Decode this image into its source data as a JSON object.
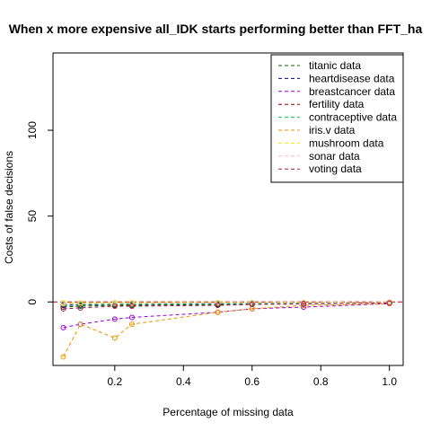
{
  "chart_data": {
    "type": "line",
    "title": "When x more expensive all_IDK starts performing better than FFT_ha",
    "xlabel": "Percentage of missing data",
    "ylabel": "Costs of false decisions",
    "xlim": [
      0.02,
      1.04
    ],
    "ylim": [
      -37,
      145
    ],
    "xticks": [
      0.2,
      0.4,
      0.6,
      0.8,
      1.0
    ],
    "xtick_labels": [
      "0.2",
      "0.4",
      "0.6",
      "0.8",
      "1.0"
    ],
    "yticks": [
      0,
      50,
      100
    ],
    "ytick_labels": [
      "0",
      "50",
      "100"
    ],
    "grid": false,
    "legend_position": "top-right",
    "reference_line": {
      "y": 0,
      "color": "#cc0000",
      "style": "dashed"
    },
    "x": [
      0.05,
      0.1,
      0.2,
      0.25,
      0.5,
      0.6,
      0.75,
      1.0
    ],
    "series": [
      {
        "name": "titanic data",
        "color": "#006400",
        "values": [
          -3,
          -2.5,
          -2,
          -2,
          -1.5,
          -1.2,
          -1,
          -0.5
        ]
      },
      {
        "name": "heartdisease data",
        "color": "#000080",
        "values": [
          -2,
          -1.8,
          -1.5,
          -1.4,
          -1.2,
          -1,
          -0.8,
          -0.5
        ]
      },
      {
        "name": "breastcancer data",
        "color": "#9400d3",
        "values": [
          -15,
          -13,
          -10,
          -9,
          -6,
          -4,
          -3,
          -1
        ]
      },
      {
        "name": "fertility data",
        "color": "#8b0000",
        "values": [
          -1,
          -1,
          -1.5,
          -1,
          -0.8,
          -0.6,
          -0.4,
          -0.2
        ]
      },
      {
        "name": "contraceptive data",
        "color": "#00cc44",
        "values": [
          -1.5,
          -1.5,
          -1.3,
          -1.2,
          -1,
          -0.9,
          -0.7,
          -0.4
        ]
      },
      {
        "name": "iris.v data",
        "color": "#e69500",
        "values": [
          -32,
          -13,
          -21,
          -13,
          -6,
          -4,
          -2,
          -1
        ]
      },
      {
        "name": "mushroom data",
        "color": "#f2e600",
        "values": [
          -0.5,
          -0.5,
          -0.4,
          -0.4,
          -0.3,
          -0.3,
          -0.2,
          -0.1
        ]
      },
      {
        "name": "sonar data",
        "color": "#ffb6c1",
        "values": [
          -1,
          -1,
          -0.8,
          -0.8,
          -0.6,
          -0.5,
          -0.4,
          -0.2
        ]
      },
      {
        "name": "voting data",
        "color": "#a0203c",
        "values": [
          -4,
          -3.5,
          -2.5,
          -2.5,
          -2,
          -1.5,
          -1.2,
          -0.6
        ]
      }
    ]
  }
}
